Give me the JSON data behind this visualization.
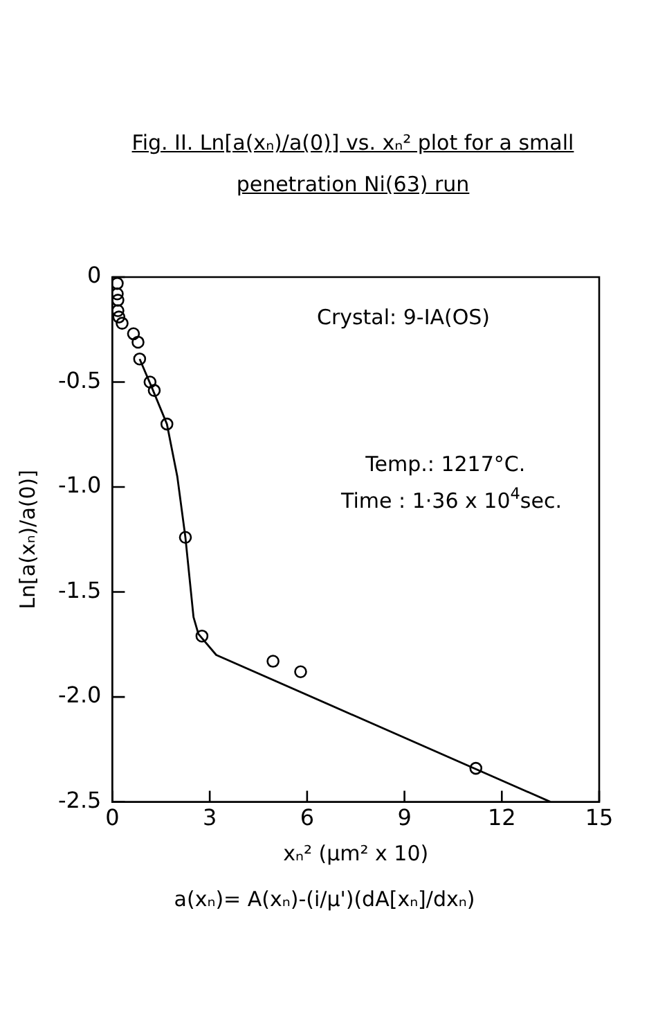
{
  "chart_data": {
    "type": "scatter",
    "title": "Fig. II. Ln[a(xₙ)/a(0)] vs. xₙ² plot for a small penetration Ni(63) run",
    "xlabel": "xₙ² (μm² x 10)",
    "ylabel": "Ln[a(xₙ)/a(0)]",
    "xlim": [
      0,
      15
    ],
    "xticks": [
      0,
      3,
      6,
      9,
      12,
      15
    ],
    "ylim": [
      -2.5,
      0
    ],
    "yticks": [
      {
        "value": 0,
        "label": "0"
      },
      {
        "value": -0.5,
        "label": "-0.5"
      },
      {
        "value": -1,
        "label": "-1.0"
      },
      {
        "value": -1.5,
        "label": "-1.5"
      },
      {
        "value": -2,
        "label": "-2.0"
      },
      {
        "value": -2.5,
        "label": "-2.5"
      }
    ],
    "grid": false,
    "legend": false,
    "marker": "circle",
    "series": [
      {
        "type": "scatter",
        "color": "#000000",
        "x": [
          0.15,
          0.15,
          0.17,
          0.17,
          0.2,
          0.3,
          0.65,
          0.79,
          0.84,
          1.16,
          1.29,
          1.68,
          2.25,
          2.76,
          4.95,
          5.8,
          11.2
        ],
        "values": [
          -0.03,
          -0.08,
          -0.11,
          -0.16,
          -0.19,
          -0.22,
          -0.27,
          -0.31,
          -0.39,
          -0.5,
          -0.54,
          -0.7,
          -1.24,
          -1.71,
          -1.83,
          -1.88,
          -2.34
        ]
      },
      {
        "type": "line",
        "color": "#000000",
        "marker": "none",
        "x": [
          0.84,
          1.2,
          1.68,
          2.0,
          2.25,
          2.5,
          2.65,
          3.2,
          13.5
        ],
        "values": [
          -0.39,
          -0.52,
          -0.7,
          -0.95,
          -1.24,
          -1.62,
          -1.7,
          -1.8,
          -2.5
        ]
      }
    ],
    "annotations": [
      "Crystal: 9-IA(OS)",
      "Temp.: 1217°C.",
      "Time : 1·36 x 10$^{4}$sec.",
      "a(xₙ)= A(xₙ)-(i/μ')(dA[xₙ]/dxₙ)"
    ]
  }
}
